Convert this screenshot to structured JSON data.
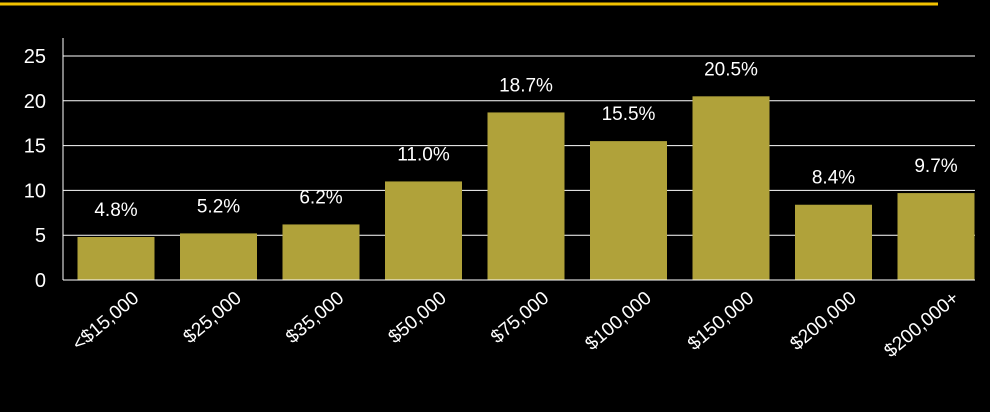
{
  "colors": {
    "background": "#000000",
    "bar": "#b0a23a",
    "accent_line": "#f2c200",
    "grid": "#ffffff",
    "text": "#ffffff"
  },
  "chart_data": {
    "type": "bar",
    "categories": [
      "<$15,000",
      "$25,000",
      "$35,000",
      "$50,000",
      "$75,000",
      "$100,000",
      "$150,000",
      "$200,000",
      "$200,000+"
    ],
    "values": [
      4.8,
      5.2,
      6.2,
      11.0,
      18.7,
      15.5,
      20.5,
      8.4,
      9.7
    ],
    "data_labels": [
      "4.8%",
      "5.2%",
      "6.2%",
      "11.0%",
      "18.7%",
      "15.5%",
      "20.5%",
      "8.4%",
      "9.7%"
    ],
    "y_ticks": [
      0,
      5,
      10,
      15,
      20,
      25
    ],
    "ylim": [
      0,
      25
    ],
    "grid": true,
    "legend": "none",
    "title": "",
    "xlabel": "",
    "ylabel": ""
  }
}
